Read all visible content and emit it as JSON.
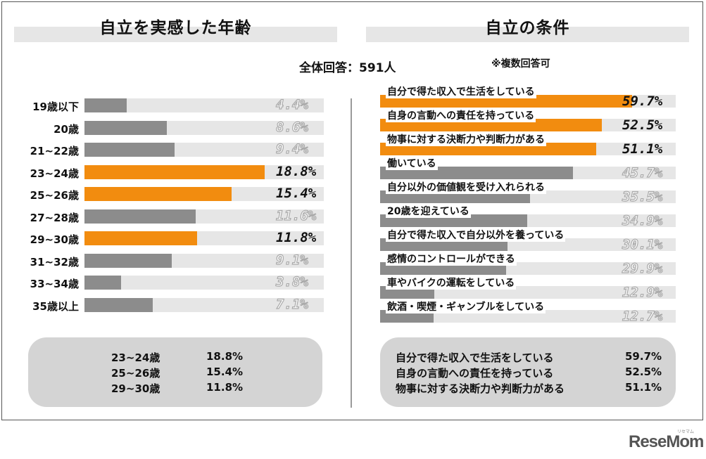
{
  "titles": {
    "left": "自立を実感した年齢",
    "right": "自立の条件"
  },
  "total_note": "全体回答：591人",
  "multi_note": "※複数回答可",
  "colors": {
    "highlight": "#f28c0f",
    "normal": "#8c8c8c",
    "track": "#e6e6e6"
  },
  "chart_data": [
    {
      "type": "bar",
      "title": "自立を実感した年齢",
      "orientation": "horizontal",
      "xlim": [
        0,
        25
      ],
      "categories": [
        "19歳以下",
        "20歳",
        "21~22歳",
        "23~24歳",
        "25~26歳",
        "27~28歳",
        "29~30歳",
        "31~32歳",
        "33~34歳",
        "35歳以上"
      ],
      "values": [
        4.4,
        8.6,
        9.4,
        18.8,
        15.4,
        11.6,
        11.8,
        9.1,
        3.8,
        7.1
      ],
      "labels": [
        "4.4%",
        "8.6%",
        "9.4%",
        "18.8%",
        "15.4%",
        "11.6%",
        "11.8%",
        "9.1%",
        "3.8%",
        "7.1%"
      ],
      "highlighted": [
        false,
        false,
        false,
        true,
        true,
        false,
        true,
        false,
        false,
        false
      ]
    },
    {
      "type": "bar",
      "title": "自立の条件",
      "orientation": "horizontal",
      "xlim": [
        0,
        70
      ],
      "categories": [
        "自分で得た収入で生活をしている",
        "自身の言動への責任を持っている",
        "物事に対する決断力や判断力がある",
        "働いている",
        "自分以外の価値観を受け入れられる",
        "20歳を迎えている",
        "自分で得た収入で自分以外を養っている",
        "感情のコントロールができる",
        "車やバイクの運転をしている",
        "飲酒・喫煙・ギャンブルをしている"
      ],
      "values": [
        59.7,
        52.5,
        51.1,
        45.7,
        35.5,
        34.9,
        30.1,
        29.9,
        12.9,
        12.7
      ],
      "labels": [
        "59.7%",
        "52.5%",
        "51.1%",
        "45.7%",
        "35.5%",
        "34.9%",
        "30.1%",
        "29.9%",
        "12.9%",
        "12.7%"
      ],
      "highlighted": [
        true,
        true,
        true,
        false,
        false,
        false,
        false,
        false,
        false,
        false
      ]
    }
  ],
  "summary_left": [
    {
      "label": "23~24歳",
      "value": "18.8%"
    },
    {
      "label": "25~26歳",
      "value": "15.4%"
    },
    {
      "label": "29~30歳",
      "value": "11.8%"
    }
  ],
  "summary_right": [
    {
      "label": "自分で得た収入で生活をしている",
      "value": "59.7%"
    },
    {
      "label": "自身の言動への責任を持っている",
      "value": "52.5%"
    },
    {
      "label": "物事に対する決断力や判断力がある",
      "value": "51.1%"
    }
  ],
  "logo": {
    "name": "ReseMom",
    "kana": "リセマム"
  }
}
